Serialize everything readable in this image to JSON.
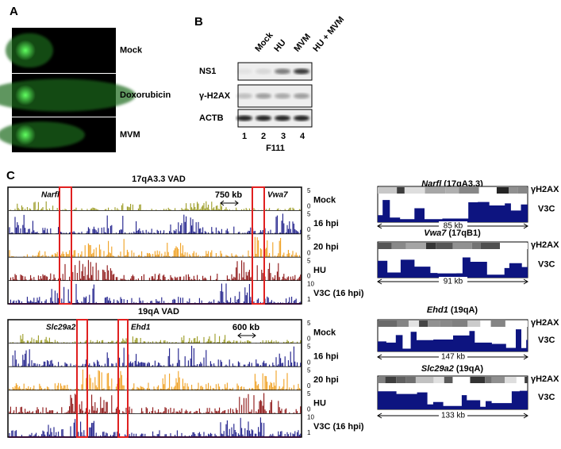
{
  "panel_a": {
    "label": "A",
    "rows": [
      "Mock",
      "Doxorubicin",
      "MVM"
    ]
  },
  "panel_b": {
    "label": "B",
    "lanes": [
      "Mock",
      "HU",
      "MVM",
      "HU + MVM"
    ],
    "rows": [
      "NS1",
      "γ-H2AX",
      "ACTB"
    ],
    "lane_numbers": [
      1,
      2,
      3,
      4
    ],
    "cell_line": "F111"
  },
  "panel_c": {
    "label": "C",
    "tracks": [
      {
        "title": "17qA3.3 VAD",
        "scale": "750 kb",
        "genes": [
          "Narfl",
          "Vwa7"
        ],
        "rows": [
          {
            "name": "Mock",
            "max": 5,
            "min": 0
          },
          {
            "name": "16 hpi",
            "max": 5,
            "min": 0
          },
          {
            "name": "20 hpi",
            "max": 5,
            "min": 0
          },
          {
            "name": "HU",
            "max": 5,
            "min": 0
          },
          {
            "name": "V3C (16 hpi)",
            "max": 10,
            "min": 1
          }
        ]
      },
      {
        "title": "19qA VAD",
        "scale": "600 kb",
        "genes": [
          "Slc29a2",
          "Ehd1"
        ],
        "rows": [
          {
            "name": "Mock",
            "max": 5,
            "min": 0
          },
          {
            "name": "16 hpi",
            "max": 5,
            "min": 0
          },
          {
            "name": "20 hpi",
            "max": 5,
            "min": 0
          },
          {
            "name": "HU",
            "max": 5,
            "min": 0
          },
          {
            "name": "V3C (16 hpi)",
            "max": 10,
            "min": 1
          }
        ]
      }
    ],
    "zooms": [
      {
        "gene": "Narfl",
        "locus": "(17qA3.3)",
        "size": "85 kb"
      },
      {
        "gene": "Vwa7",
        "locus": "(17qB1)",
        "size": "91 kb"
      },
      {
        "gene": "Ehd1",
        "locus": "(19qA)",
        "size": "147 kb"
      },
      {
        "gene": "Slc29a2",
        "locus": "(19qA)",
        "size": "133 kb"
      }
    ],
    "zoom_labels": [
      "γH2AX",
      "V3C"
    ]
  }
}
